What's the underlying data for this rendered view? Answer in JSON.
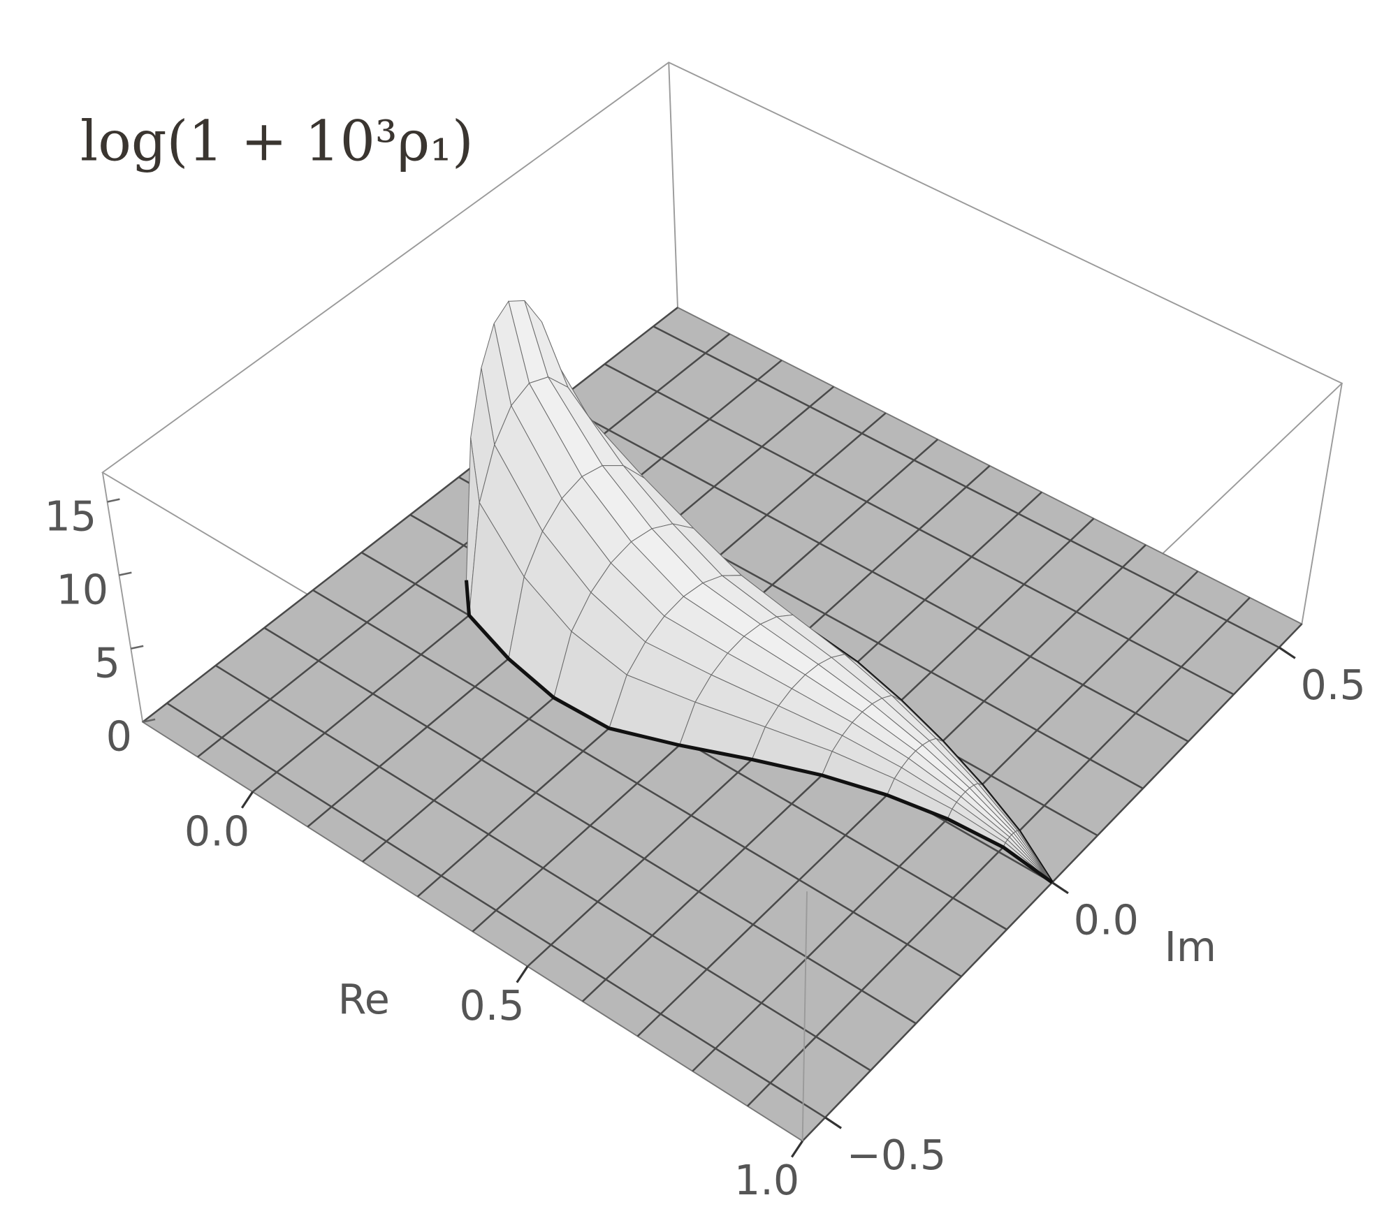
{
  "chart_data": {
    "type": "surface3d",
    "title": "log(1 + 10³ρ₁)",
    "x_label": "Re",
    "y_label": "Im",
    "xlim": [
      -0.2,
      1.0
    ],
    "xticks": [
      {
        "value": 0,
        "label": "0.0"
      },
      0.5,
      {
        "value": 1,
        "label": "1.0"
      }
    ],
    "ylim": [
      -0.55,
      0.55
    ],
    "yticks": [
      {
        "value": -0.5,
        "label": "−0.5"
      },
      {
        "value": 0,
        "label": "0.0"
      },
      0.5
    ],
    "zlim": [
      0,
      17
    ],
    "zticks": [
      0,
      5,
      10,
      15
    ],
    "surface": {
      "re": [
        -0.05,
        0.0,
        0.1,
        0.2,
        0.3,
        0.4,
        0.5,
        0.6,
        0.7,
        0.8,
        0.9,
        1.0
      ],
      "im_lower": [
        -0.05,
        -0.1,
        -0.13,
        -0.148,
        -0.145,
        -0.11,
        -0.07,
        -0.035,
        -0.01,
        0.005,
        0.01,
        0.0
      ],
      "im_upper": [
        0.19,
        0.195,
        0.2,
        0.19,
        0.175,
        0.165,
        0.155,
        0.135,
        0.11,
        0.08,
        0.045,
        0.0
      ],
      "z_max": [
        16,
        12,
        8,
        6,
        4.5,
        3.5,
        2.5,
        1.8,
        1.2,
        0.7,
        0.3,
        0
      ]
    },
    "colors": {
      "floor": "#b8b8b8",
      "surface": "#dedede",
      "mesh": "#4a4a4a",
      "boundary": "#111111",
      "box": "#9a9a9a",
      "text": "#555555"
    }
  }
}
